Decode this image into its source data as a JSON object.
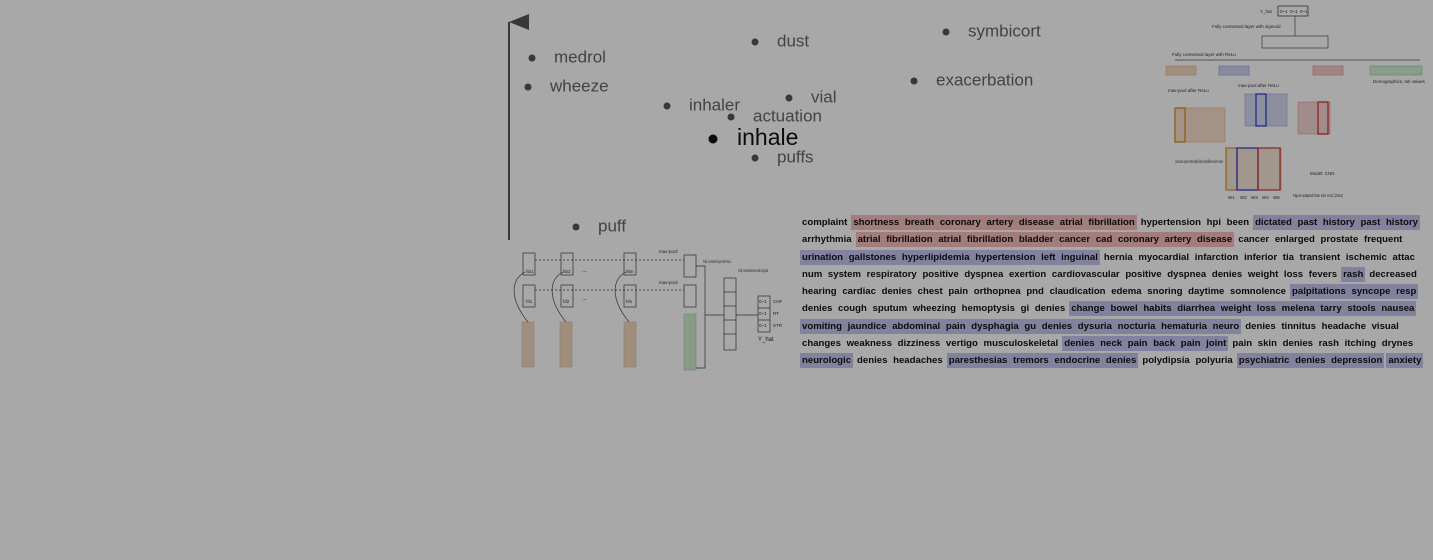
{
  "embedding": {
    "words": [
      {
        "label": "medrol"
      },
      {
        "label": "wheeze"
      },
      {
        "label": "dust"
      },
      {
        "label": "symbicort"
      },
      {
        "label": "exacerbation"
      },
      {
        "label": "inhaler"
      },
      {
        "label": "vial"
      },
      {
        "label": "actuation"
      },
      {
        "label": "inhale"
      },
      {
        "label": "puffs"
      },
      {
        "label": "puff"
      }
    ]
  },
  "cnn_diagram": {
    "output": "Y_hat",
    "probs": [
      "0~1",
      "0~1",
      "0~1"
    ],
    "fc_sigmoid": "Fully connected layer with sigmoid",
    "fc_relu": "Fully connected layer with ReLu",
    "maxpool_1": "max-pool after ReLu",
    "maxpool_2": "max-pool after ReLu",
    "demographics": "Demographics, lab values",
    "conv": "convolution layers with multiple filters with different kernel sizes",
    "model": "Model: CNN",
    "words": [
      "W1",
      "W2",
      "W3",
      "W4",
      "W5"
    ],
    "credit": "Figure adapted from Kim et al. (2014)"
  },
  "rnn_diagram": {
    "backward": [
      "hb1",
      "hb2",
      "hbn"
    ],
    "forward": [
      "hf1",
      "hf2",
      "hfn"
    ],
    "ellipsis": [
      "...",
      "..."
    ],
    "maxpool": [
      "max-pool",
      "max-pool"
    ],
    "fc_relu": "Fully connected layer with ReLu",
    "fc_sigmoid": "Fully connected layer with sigmoid",
    "probs": [
      "0~1",
      "0~1",
      "0~1"
    ],
    "classes": [
      "CHF",
      "RT",
      "STR"
    ],
    "output": "Y_hat"
  },
  "text": {
    "lines": [
      [
        {
          "text": "complaint"
        },
        {
          "text": "shortness breath coronary artery disease atrial fibrillation",
          "highlight": "red"
        },
        {
          "text": "hypertension hpi been"
        },
        {
          "text": "dictated past history past history",
          "highlight": "blue"
        }
      ],
      [
        {
          "text": "arrhythmia"
        },
        {
          "text": "atrial fibrillation atrial fibrillation bladder cancer cad coronary artery disease",
          "highlight": "red"
        },
        {
          "text": "cancer enlarged prostate frequent"
        }
      ],
      [
        {
          "text": "urination gallstones hyperlipidemia hypertension left inguinal",
          "highlight": "blue"
        },
        {
          "text": "hernia myocardial infarction inferior tia transient ischemic attac"
        }
      ],
      [
        {
          "text": "num system respiratory positive dyspnea exertion cardiovascular positive dyspnea denies weight loss fevers"
        },
        {
          "text": "rash",
          "highlight": "blue"
        },
        {
          "text": "decreased"
        }
      ],
      [
        {
          "text": "hearing cardiac denies chest pain orthopnea pnd claudication edema snoring daytime somnolence"
        },
        {
          "text": "palpitations syncope resp",
          "highlight": "blue"
        }
      ],
      [
        {
          "text": "denies cough sputum wheezing hemoptysis gi denies"
        },
        {
          "text": "change bowel habits diarrhea weight loss melena tarry stools nausea",
          "highlight": "blue"
        }
      ],
      [
        {
          "text": "vomiting jaundice abdominal pain dysphagia gu denies dysuria nocturia hematuria neuro",
          "highlight": "blue"
        },
        {
          "text": "denies tinnitus headache visual"
        }
      ],
      [
        {
          "text": "changes weakness dizziness vertigo musculoskeletal"
        },
        {
          "text": "denies neck pain back pain joint",
          "highlight": "blue"
        },
        {
          "text": "pain skin denies rash itching drynes"
        }
      ],
      [
        {
          "text": "neurologic",
          "highlight": "blue"
        },
        {
          "text": "denies headaches"
        },
        {
          "text": "paresthesias tremors endocrine denies",
          "highlight": "blue"
        },
        {
          "text": "polydipsia polyuria"
        },
        {
          "text": "psychiatric denies depression",
          "highlight": "blue"
        },
        {
          "text": "anxiety",
          "highlight": "blue"
        }
      ]
    ]
  }
}
